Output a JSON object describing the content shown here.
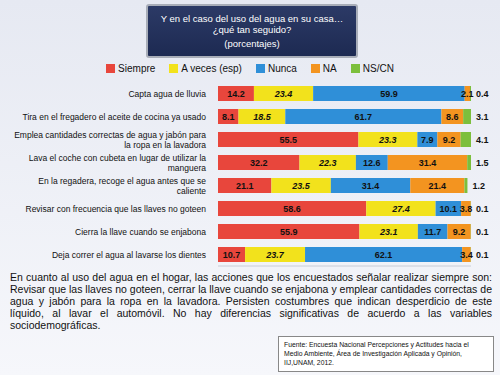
{
  "chart_data": {
    "type": "bar",
    "orientation": "horizontal",
    "stacked": true,
    "data_labels": true,
    "tick_labels": "y",
    "title": "Y en el caso del uso del agua en su casa… ¿qué tan seguido?",
    "subtitle": "(porcentajes)",
    "categories": [
      "Capta agua de lluvia",
      "Tira en el fregadero el aceite de cocina ya usado",
      "Emplea cantidades correctas de agua y jabón para la ropa en la lavadora",
      "Lava el coche con cubeta en lugar de utilizar la manguera",
      "En la regadera, recoge el agua antes que se caliente",
      "Revisar con frecuencia que las llaves no goteen",
      "Cierra la llave cuando se enjabona",
      "Deja correr el agua al lavarse los dientes"
    ],
    "series": [
      {
        "name": "Siempre",
        "color": "#e8463c",
        "values": [
          14.2,
          8.1,
          55.5,
          32.2,
          21.1,
          58.6,
          55.9,
          10.7
        ]
      },
      {
        "name": "A veces (esp)",
        "color": "#f2e21c",
        "values": [
          23.4,
          18.5,
          23.3,
          22.3,
          23.5,
          27.4,
          23.1,
          23.7
        ]
      },
      {
        "name": "Nunca",
        "color": "#2f8fd8",
        "values": [
          59.9,
          61.7,
          7.9,
          12.6,
          31.4,
          10.1,
          11.7,
          62.1
        ]
      },
      {
        "name": "NA",
        "color": "#f39420",
        "values": [
          2.1,
          8.6,
          9.2,
          31.4,
          21.4,
          3.8,
          9.2,
          3.4
        ]
      },
      {
        "name": "NS/CN",
        "color": "#7cbf3c",
        "values": [
          0.4,
          3.1,
          4.1,
          1.5,
          1.2,
          0.1,
          0.1,
          0.1
        ]
      }
    ],
    "xlim": [
      0,
      100
    ],
    "annotations": [
      "En cuanto al uso del agua en el hogar, las acciones que los encuestados señalar realizar siempre son: Revisar que las llaves no goteen, cerrar la llave cuando se enjabona y emplear cantidades correctas de agua y jabón para la ropa en la lavadora. Persisten costumbres que indican desperdicio de este líquido, al lavar el automóvil. No hay diferencias significativas de acuerdo a las variables sociodemográficas.",
      "Fuente: Encuesta Nacional Percepciones y Actitudes hacia el Medio Ambiente, Área de Investigación Aplicada y Opinión, IIJ,UNAM, 2012."
    ]
  }
}
